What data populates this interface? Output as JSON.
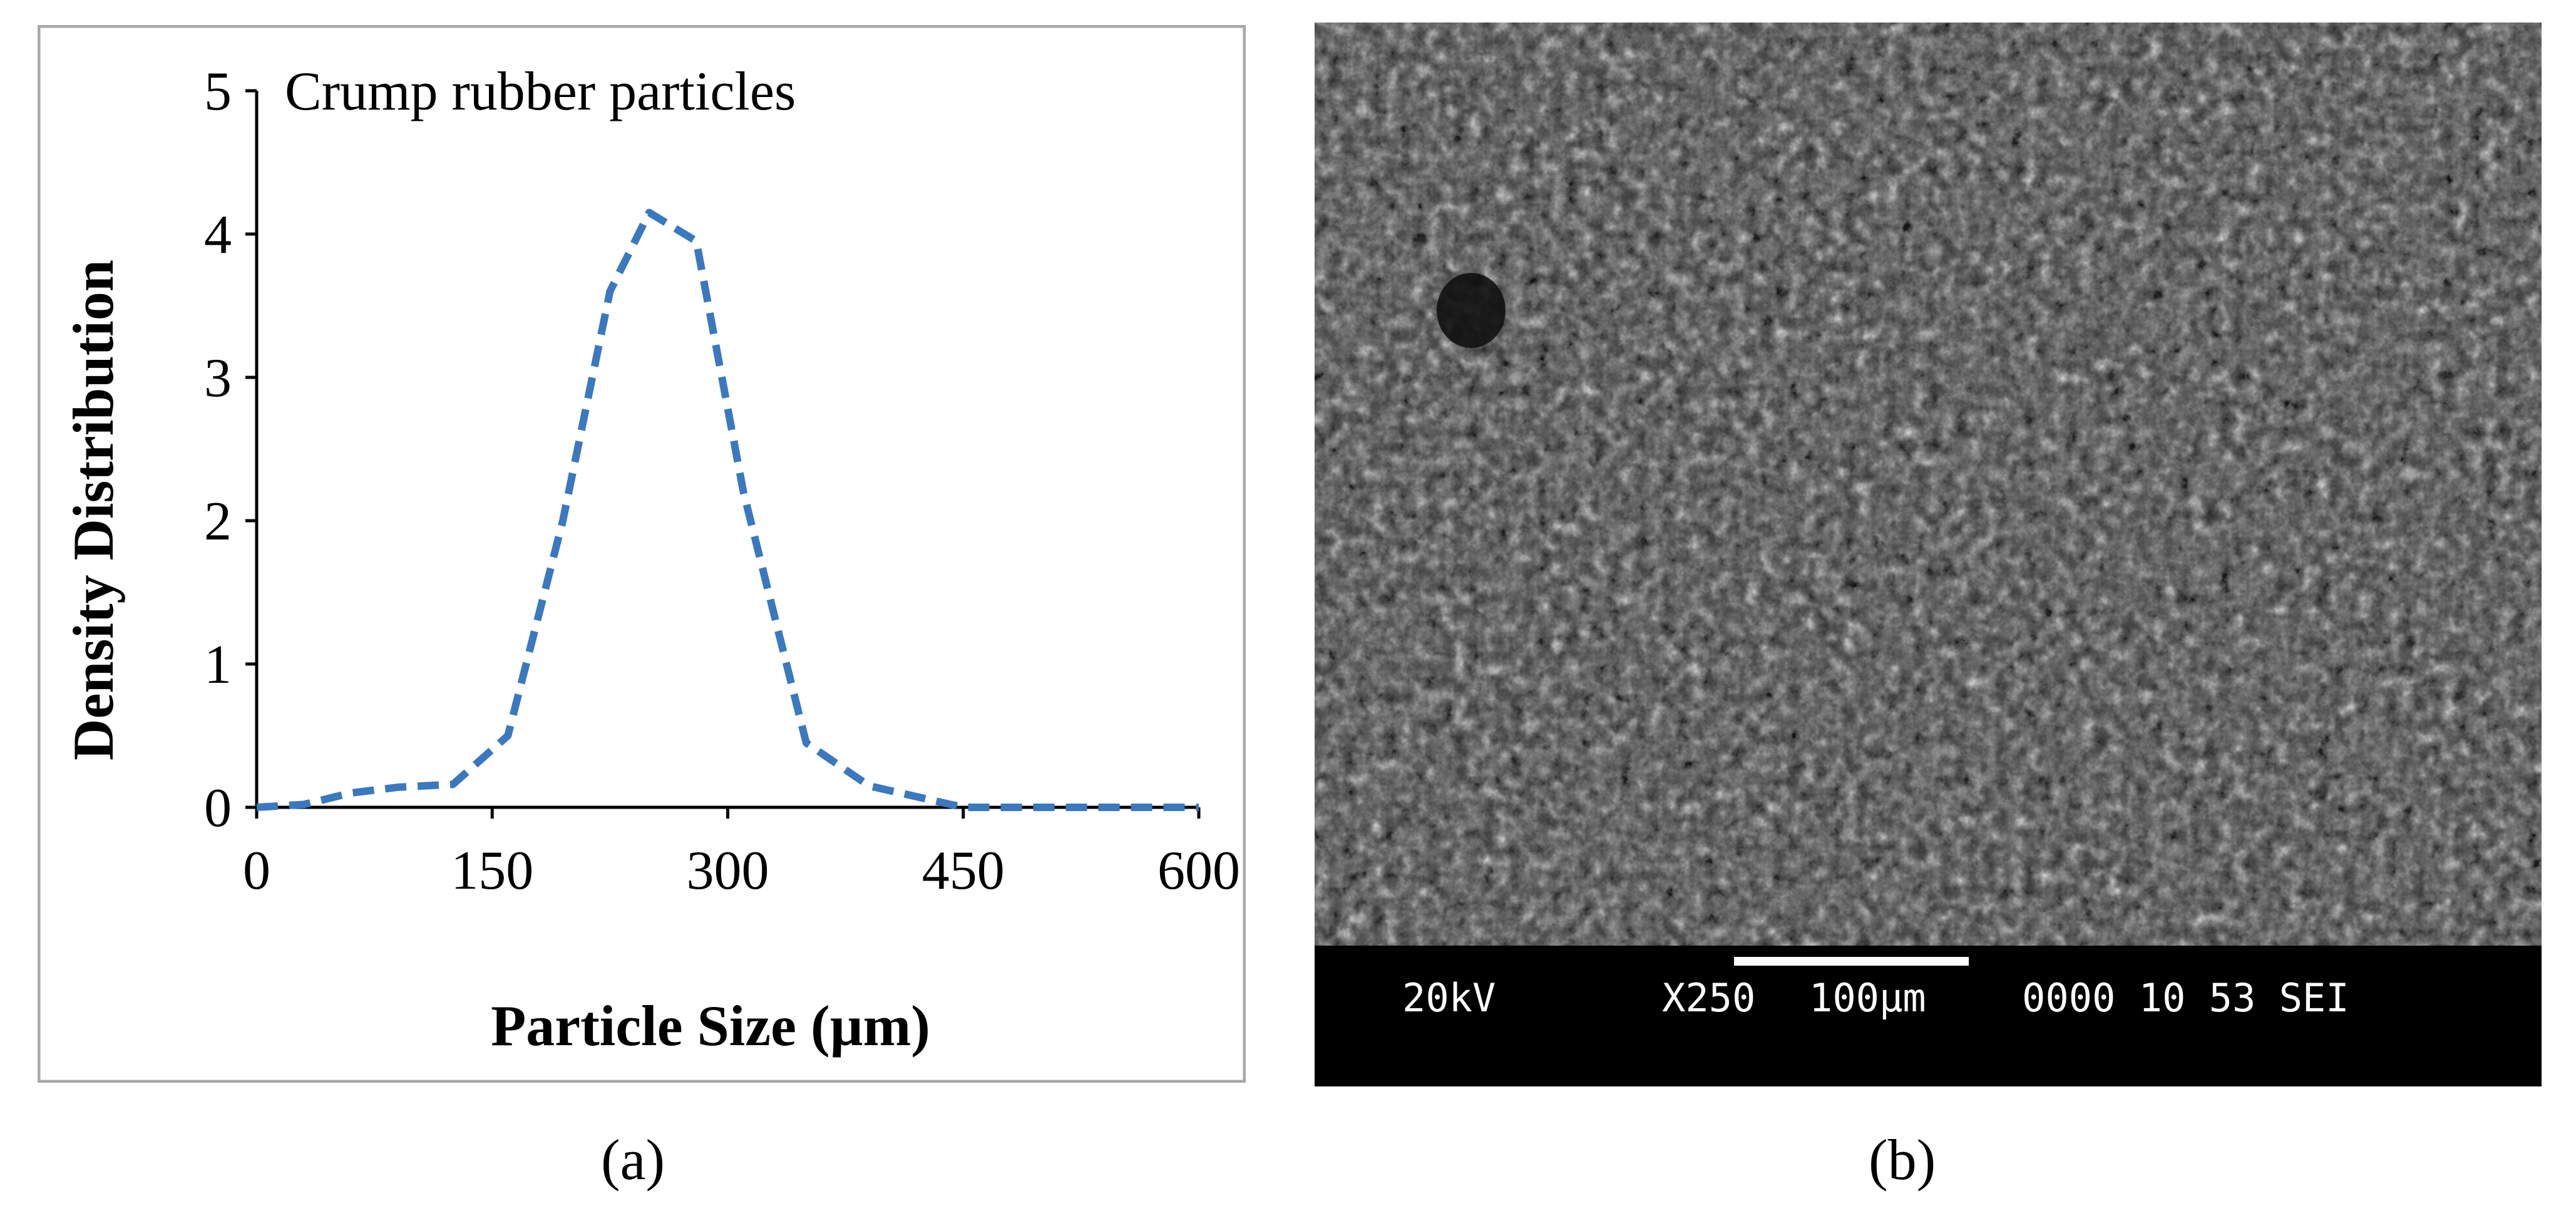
{
  "chart_data": {
    "type": "line",
    "title": "Crump rubber particles",
    "xlabel": "Particle Size (µm)",
    "ylabel": "Density Distribution",
    "xlim": [
      0,
      600
    ],
    "ylim": [
      0,
      5
    ],
    "x_ticks": [
      0,
      150,
      300,
      450,
      600
    ],
    "y_ticks": [
      0,
      1,
      2,
      3,
      4,
      5
    ],
    "x_tick_labels": [
      "0",
      "150",
      "300",
      "450",
      "600"
    ],
    "y_tick_labels": [
      "0",
      "1",
      "2",
      "3",
      "4",
      "5"
    ],
    "grid": false,
    "series": [
      {
        "name": "Crump rubber particles",
        "color": "#3a78c0",
        "style": "dashed",
        "x": [
          0,
          30,
          60,
          90,
          125,
          160,
          195,
          225,
          250,
          280,
          310,
          350,
          390,
          450,
          500,
          600
        ],
        "y": [
          0,
          0.02,
          0.1,
          0.14,
          0.16,
          0.5,
          2.0,
          3.6,
          4.15,
          3.95,
          2.2,
          0.45,
          0.15,
          0.0,
          0.0,
          0.0
        ]
      }
    ]
  },
  "sem_image": {
    "info": {
      "voltage": "20kV",
      "magnification": "X250",
      "scale_label": "100µm",
      "code": "0000 10 53 SEI"
    }
  },
  "captions": {
    "a": "(a)",
    "b": "(b)"
  }
}
